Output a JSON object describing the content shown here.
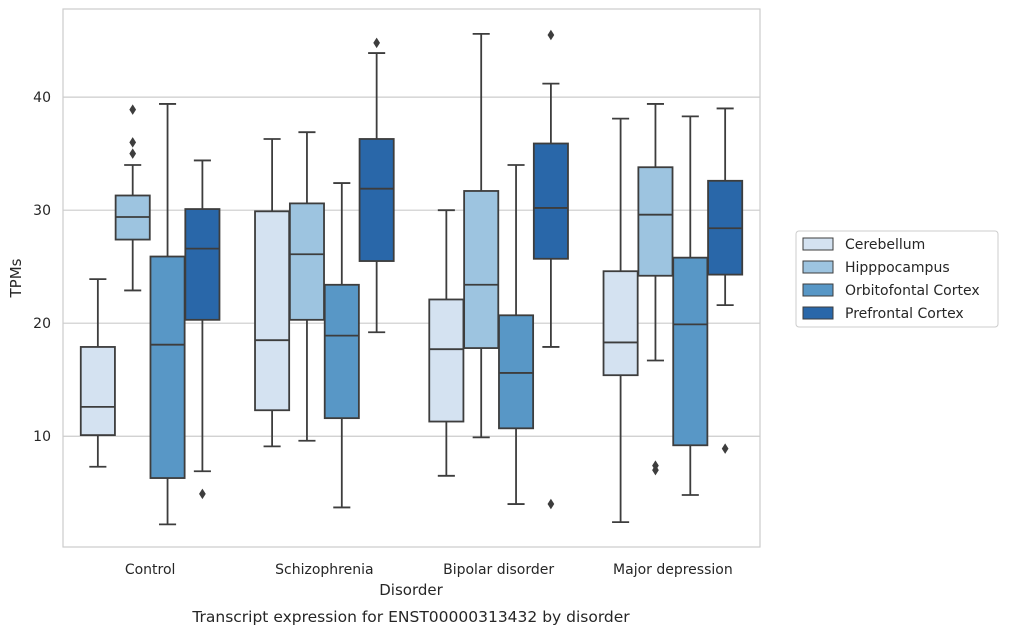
{
  "chart_data": {
    "type": "boxplot",
    "title": "",
    "caption": "Transcript expression for ENST00000313432 by disorder",
    "xlabel": "Disorder",
    "ylabel": "TPMs",
    "categories": [
      "Control",
      "Schizophrenia",
      "Bipolar disorder",
      "Major depression"
    ],
    "ylim": [
      0.2,
      47.8
    ],
    "yticks": [
      10,
      20,
      30,
      40
    ],
    "grid": "horizontal",
    "legend_position": "right",
    "series": [
      {
        "name": "Cerebellum",
        "color": "#d4e2f1",
        "boxes": [
          {
            "whislo": 7.3,
            "q1": 10.1,
            "med": 12.6,
            "q3": 17.9,
            "whishi": 23.9,
            "fliers": []
          },
          {
            "whislo": 9.1,
            "q1": 12.3,
            "med": 18.5,
            "q3": 29.9,
            "whishi": 36.3,
            "fliers": []
          },
          {
            "whislo": 6.5,
            "q1": 11.3,
            "med": 17.7,
            "q3": 22.1,
            "whishi": 30.0,
            "fliers": []
          },
          {
            "whislo": 2.4,
            "q1": 15.4,
            "med": 18.3,
            "q3": 24.6,
            "whishi": 38.1,
            "fliers": []
          }
        ]
      },
      {
        "name": "Hipppocampus",
        "color": "#9dc4e0",
        "boxes": [
          {
            "whislo": 22.9,
            "q1": 27.4,
            "med": 29.4,
            "q3": 31.3,
            "whishi": 34.0,
            "fliers": [
              38.9,
              36.0,
              35.0
            ]
          },
          {
            "whislo": 9.6,
            "q1": 20.3,
            "med": 26.1,
            "q3": 30.6,
            "whishi": 36.9,
            "fliers": []
          },
          {
            "whislo": 9.9,
            "q1": 17.8,
            "med": 23.4,
            "q3": 31.7,
            "whishi": 45.6,
            "fliers": []
          },
          {
            "whislo": 16.7,
            "q1": 24.2,
            "med": 29.6,
            "q3": 33.8,
            "whishi": 39.4,
            "fliers": [
              7.0,
              7.4
            ]
          }
        ]
      },
      {
        "name": "Orbitofontal Cortex",
        "color": "#5897c6",
        "boxes": [
          {
            "whislo": 2.2,
            "q1": 6.3,
            "med": 18.1,
            "q3": 25.9,
            "whishi": 39.4,
            "fliers": []
          },
          {
            "whislo": 3.7,
            "q1": 11.6,
            "med": 18.9,
            "q3": 23.4,
            "whishi": 32.4,
            "fliers": []
          },
          {
            "whislo": 4.0,
            "q1": 10.7,
            "med": 15.6,
            "q3": 20.7,
            "whishi": 34.0,
            "fliers": []
          },
          {
            "whislo": 4.8,
            "q1": 9.2,
            "med": 19.9,
            "q3": 25.8,
            "whishi": 38.3,
            "fliers": []
          }
        ]
      },
      {
        "name": "Prefrontal Cortex",
        "color": "#2967a9",
        "boxes": [
          {
            "whislo": 6.9,
            "q1": 20.3,
            "med": 26.6,
            "q3": 30.1,
            "whishi": 34.4,
            "fliers": [
              4.9
            ]
          },
          {
            "whislo": 19.2,
            "q1": 25.5,
            "med": 31.9,
            "q3": 36.3,
            "whishi": 43.9,
            "fliers": [
              44.8
            ]
          },
          {
            "whislo": 17.9,
            "q1": 25.7,
            "med": 30.2,
            "q3": 35.9,
            "whishi": 41.2,
            "fliers": [
              45.5,
              4.0
            ]
          },
          {
            "whislo": 21.6,
            "q1": 24.3,
            "med": 28.4,
            "q3": 32.6,
            "whishi": 39.0,
            "fliers": [
              8.9
            ]
          }
        ]
      }
    ]
  }
}
